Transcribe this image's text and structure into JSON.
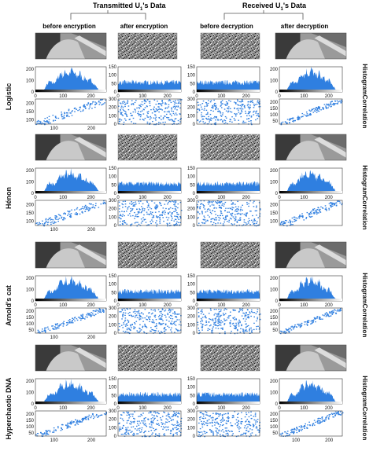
{
  "header": {
    "transmitted": "Transmitted U",
    "transmitted_sub": "1",
    "transmitted_tail": "'s Data",
    "received": "Received U",
    "received_sub": "1",
    "received_tail": "'s Data"
  },
  "columns": [
    "before encryption",
    "after encryption",
    "before decryption",
    "after decryption"
  ],
  "row_kinds": [
    "Histogram",
    "Correlation"
  ],
  "colors": {
    "plot": "#2f7fe0",
    "axis": "#333333",
    "bracket": "#555555"
  },
  "chart_data": {
    "type": "figure-grid",
    "maps": [
      "Logistic",
      "Hénon",
      "Arnold's cat",
      "Hyperchaotic DNA"
    ],
    "histogram_axes": {
      "original": {
        "xlim": [
          0,
          255
        ],
        "xticks": [
          0,
          100,
          200
        ],
        "ylim": [
          0,
          220
        ],
        "yticks": [
          0,
          100,
          200
        ]
      },
      "encrypted": {
        "xlim": [
          0,
          255
        ],
        "xticks": [
          0,
          100,
          200
        ],
        "ylim": [
          0,
          150
        ],
        "yticks": [
          0,
          50,
          100,
          150
        ]
      }
    },
    "correlation_axes": {
      "original": {
        "xlim": [
          50,
          240
        ],
        "xticks": [
          100,
          200
        ],
        "ylim": [
          50,
          240
        ]
      },
      "encrypted": {
        "xlim": [
          0,
          260
        ],
        "xticks": [
          100,
          200
        ],
        "ylim": [
          0,
          300
        ],
        "yticks": [
          0,
          100,
          200,
          300
        ]
      }
    },
    "panels": [
      {
        "map": "Logistic",
        "hist_original_yticks": [
          0,
          100,
          200
        ],
        "hist_encrypted_yticks": [
          0,
          50,
          100,
          150
        ],
        "corr_original_yticks": [
          100,
          150,
          200
        ],
        "corr_encrypted_yticks": [
          0,
          100,
          200,
          300
        ],
        "corr_after_decryption_yticks": [
          50,
          100,
          150,
          200
        ]
      },
      {
        "map": "Hénon",
        "hist_original_yticks": [
          0,
          100,
          200
        ],
        "hist_encrypted_yticks": [
          0,
          50,
          100,
          150
        ],
        "corr_original_yticks": [
          100,
          150,
          200
        ],
        "corr_encrypted_yticks": [
          0,
          100,
          200,
          300
        ],
        "corr_after_decryption_yticks": [
          100,
          150,
          200
        ]
      },
      {
        "map": "Arnold's cat",
        "hist_original_yticks": [
          0,
          100,
          200
        ],
        "hist_encrypted_yticks": [
          0,
          50,
          100,
          150
        ],
        "corr_original_yticks": [
          50,
          100,
          150,
          200
        ],
        "corr_encrypted_yticks": [
          0,
          100,
          200,
          300
        ],
        "corr_after_decryption_yticks": [
          50,
          100,
          150,
          200
        ]
      },
      {
        "map": "Hyperchaotic DNA",
        "hist_original_yticks": [
          0,
          100,
          200
        ],
        "hist_encrypted_yticks": [
          0,
          50,
          100,
          150
        ],
        "corr_original_yticks": [
          50,
          100,
          150,
          200
        ],
        "corr_encrypted_yticks": [
          0,
          100,
          200,
          300
        ],
        "corr_after_decryption_yticks": [
          50,
          100,
          150,
          200
        ]
      }
    ],
    "histogram_profile_original": [
      {
        "x": 0,
        "y": 2
      },
      {
        "x": 20,
        "y": 5
      },
      {
        "x": 30,
        "y": 15
      },
      {
        "x": 40,
        "y": 60
      },
      {
        "x": 50,
        "y": 95
      },
      {
        "x": 60,
        "y": 80
      },
      {
        "x": 70,
        "y": 90
      },
      {
        "x": 80,
        "y": 120
      },
      {
        "x": 90,
        "y": 175
      },
      {
        "x": 100,
        "y": 150
      },
      {
        "x": 110,
        "y": 190
      },
      {
        "x": 120,
        "y": 155
      },
      {
        "x": 130,
        "y": 205
      },
      {
        "x": 140,
        "y": 165
      },
      {
        "x": 150,
        "y": 140
      },
      {
        "x": 160,
        "y": 175
      },
      {
        "x": 170,
        "y": 120
      },
      {
        "x": 180,
        "y": 130
      },
      {
        "x": 190,
        "y": 95
      },
      {
        "x": 200,
        "y": 110
      },
      {
        "x": 210,
        "y": 80
      },
      {
        "x": 220,
        "y": 45
      },
      {
        "x": 230,
        "y": 15
      },
      {
        "x": 240,
        "y": 3
      },
      {
        "x": 255,
        "y": 0
      }
    ],
    "histogram_encrypted_level": 55,
    "correlation_original_trend": {
      "slope": 1,
      "spread": 22
    }
  }
}
